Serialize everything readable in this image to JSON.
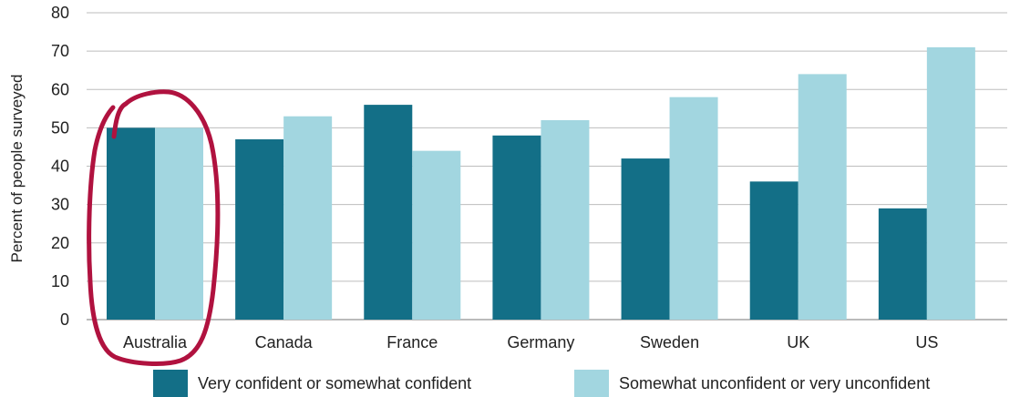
{
  "chart_data": {
    "type": "bar",
    "title": "",
    "xlabel": "",
    "ylabel": "Percent of people surveyed",
    "ylim": [
      0,
      80
    ],
    "yticks": [
      "0",
      "10",
      "20",
      "30",
      "40",
      "50",
      "60",
      "70",
      "80"
    ],
    "grid": true,
    "legend_position": "bottom",
    "categories": [
      "Australia",
      "Canada",
      "France",
      "Germany",
      "Sweden",
      "UK",
      "US"
    ],
    "series": [
      {
        "name": "Very confident or somewhat confident",
        "color": "#136f87",
        "values": [
          50,
          47,
          56,
          48,
          42,
          36,
          29
        ]
      },
      {
        "name": "Somewhat unconfident or very unconfident",
        "color": "#a2d6e0",
        "values": [
          50,
          53,
          44,
          52,
          58,
          64,
          71
        ]
      }
    ],
    "annotations": [
      {
        "type": "hand-drawn-circle",
        "target": "Australia",
        "color": "#b0123f"
      }
    ]
  }
}
